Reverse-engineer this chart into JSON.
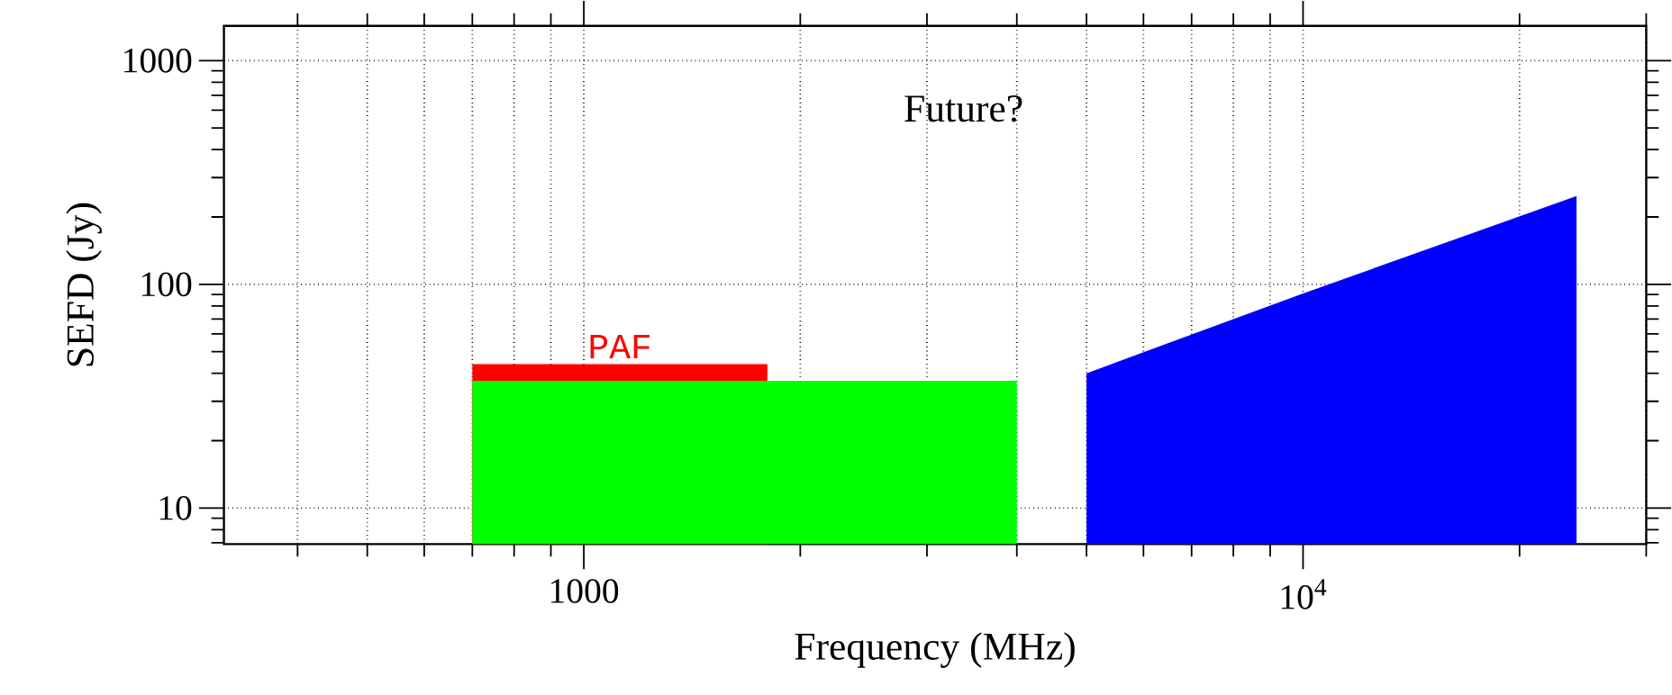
{
  "chart_data": {
    "type": "area",
    "xlabel": "Frequency (MHz)",
    "ylabel": "SEFD (Jy)",
    "log": "xy",
    "grid": true,
    "legend": false,
    "xlim": [
      316,
      30000
    ],
    "ylim": [
      6.9,
      1430
    ],
    "xticks": [
      1000,
      {
        "value": 10000,
        "label": "10$^{4}$"
      }
    ],
    "yticks": [
      10,
      100,
      1000
    ],
    "series": [
      {
        "name": "PAF",
        "color": "#ff0000",
        "x": [
          700,
          1800
        ],
        "values": [
          44,
          44
        ]
      },
      {
        "color": "#00ff00",
        "x": [
          700,
          4000
        ],
        "values": [
          37,
          37
        ]
      },
      {
        "color": "#0000ff",
        "x": [
          5000,
          10000,
          24000
        ],
        "values": [
          40,
          91,
          248
        ]
      }
    ],
    "annotations": [
      "Future?"
    ]
  }
}
